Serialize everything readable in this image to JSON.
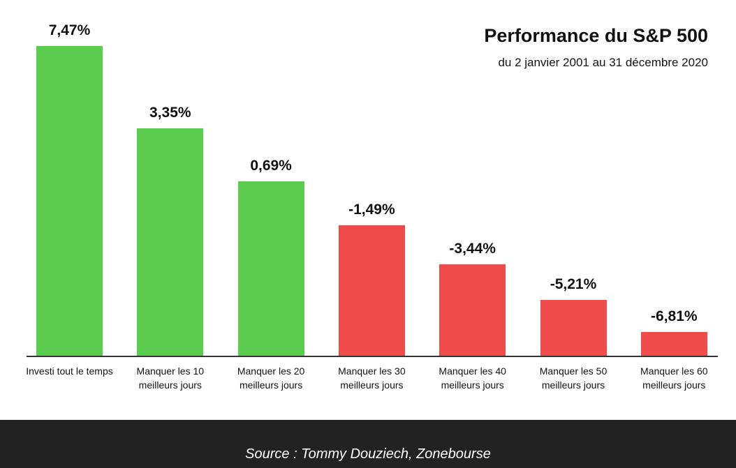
{
  "chart_data": {
    "type": "bar",
    "title": "Performance du S&P 500",
    "subtitle": "du 2 janvier 2001 au 31 décembre 2020",
    "categories": [
      "Investi tout le temps",
      "Manquer les 10 meilleurs jours",
      "Manquer les 20 meilleurs jours",
      "Manquer les 30 meilleurs jours",
      "Manquer les 40 meilleurs jours",
      "Manquer les 50 meilleurs jours",
      "Manquer les 60 meilleurs jours"
    ],
    "values": [
      7.47,
      3.35,
      0.69,
      -1.49,
      -3.44,
      -5.21,
      -6.81
    ],
    "value_labels": [
      "7,47%",
      "3,35%",
      "0,69%",
      "-1,49%",
      "-3,44%",
      "-5,21%",
      "-6,81%"
    ],
    "colors": [
      "#5ccc50",
      "#5ccc50",
      "#5ccc50",
      "#f04b4b",
      "#f04b4b",
      "#f04b4b",
      "#f04b4b"
    ],
    "ylim": [
      -8,
      7.6
    ],
    "source": "Source : Tommy Douziech, Zonebourse"
  }
}
